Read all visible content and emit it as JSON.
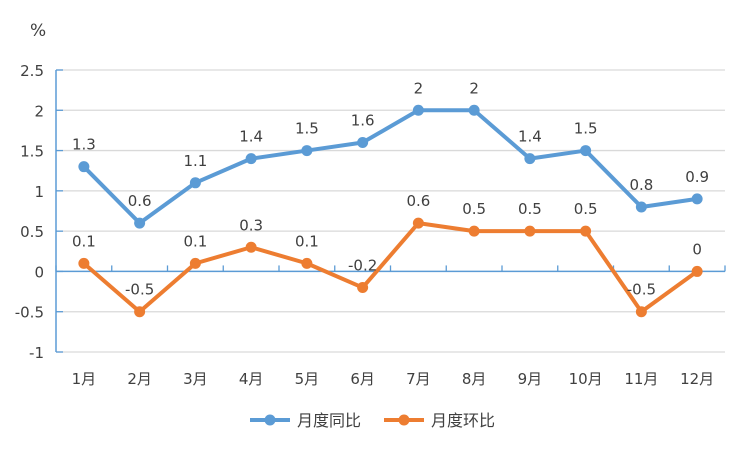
{
  "chart_data": {
    "type": "line",
    "unit_label": "%",
    "categories": [
      "1月",
      "2月",
      "3月",
      "4月",
      "5月",
      "6月",
      "7月",
      "8月",
      "9月",
      "10月",
      "11月",
      "12月"
    ],
    "series": [
      {
        "name": "月度同比",
        "color": "#5B9BD5",
        "values": [
          1.3,
          0.6,
          1.1,
          1.4,
          1.5,
          1.6,
          2,
          2,
          1.4,
          1.5,
          0.8,
          0.9
        ]
      },
      {
        "name": "月度环比",
        "color": "#ED7D31",
        "values": [
          0.1,
          -0.5,
          0.1,
          0.3,
          0.1,
          -0.2,
          0.6,
          0.5,
          0.5,
          0.5,
          -0.5,
          0
        ]
      }
    ],
    "ylim": [
      -1,
      2.5
    ],
    "yticks": [
      "2.5",
      "2",
      "1.5",
      "1",
      "0.5",
      "0",
      "-0.5",
      "-1"
    ],
    "ytick_values": [
      2.5,
      2,
      1.5,
      1,
      0.5,
      0,
      -0.5,
      -1
    ],
    "grid": true,
    "legend": "bottom-center",
    "axis_color": "#5B9BD5",
    "grid_color": "#D9D9D9"
  }
}
